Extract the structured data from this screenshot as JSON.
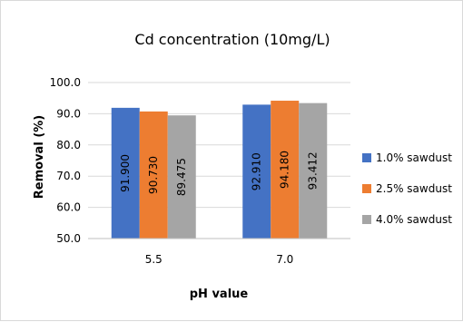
{
  "chart_data": {
    "type": "bar",
    "title": "Cd concentration (10mg/L)",
    "xlabel": "pH value",
    "ylabel": "Removal (%)",
    "categories": [
      "5.5",
      "7.0"
    ],
    "ylim": [
      50,
      100
    ],
    "yticks": [
      "100.0",
      "90.0",
      "80.0",
      "70.0",
      "60.0",
      "50.0"
    ],
    "grid": true,
    "legend_position": "right",
    "series": [
      {
        "name": "1.0% sawdust",
        "color": "#4472C4",
        "values": [
          91.9,
          92.91
        ],
        "labels": [
          "91.900",
          "92.910"
        ]
      },
      {
        "name": "2.5% sawdust",
        "color": "#ED7D31",
        "values": [
          90.73,
          94.18
        ],
        "labels": [
          "90.730",
          "94.180"
        ]
      },
      {
        "name": "4.0% sawdust",
        "color": "#A5A5A5",
        "values": [
          89.475,
          93.412
        ],
        "labels": [
          "89.475",
          "93.412"
        ]
      }
    ]
  }
}
